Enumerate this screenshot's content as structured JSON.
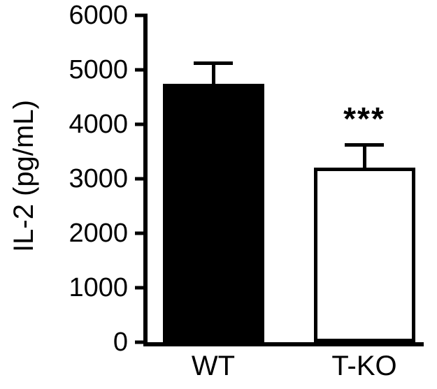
{
  "figure": {
    "ylabel": "IL-2 (pg/mL)"
  },
  "chart_data": {
    "type": "bar",
    "categories": [
      "WT",
      "T-KO"
    ],
    "values": [
      4750,
      3200
    ],
    "errors": [
      400,
      450
    ],
    "bar_fill_colors": [
      "#000000",
      "#ffffff"
    ],
    "bar_border_color": "#000000",
    "significance": [
      {
        "category": "T-KO",
        "label": "***"
      }
    ],
    "title": "",
    "xlabel": "",
    "ylabel": "IL-2 (pg/mL)",
    "ylim": [
      0,
      6000
    ],
    "yticks": [
      0,
      1000,
      2000,
      3000,
      4000,
      5000,
      6000
    ],
    "grid": false,
    "legend": false
  }
}
